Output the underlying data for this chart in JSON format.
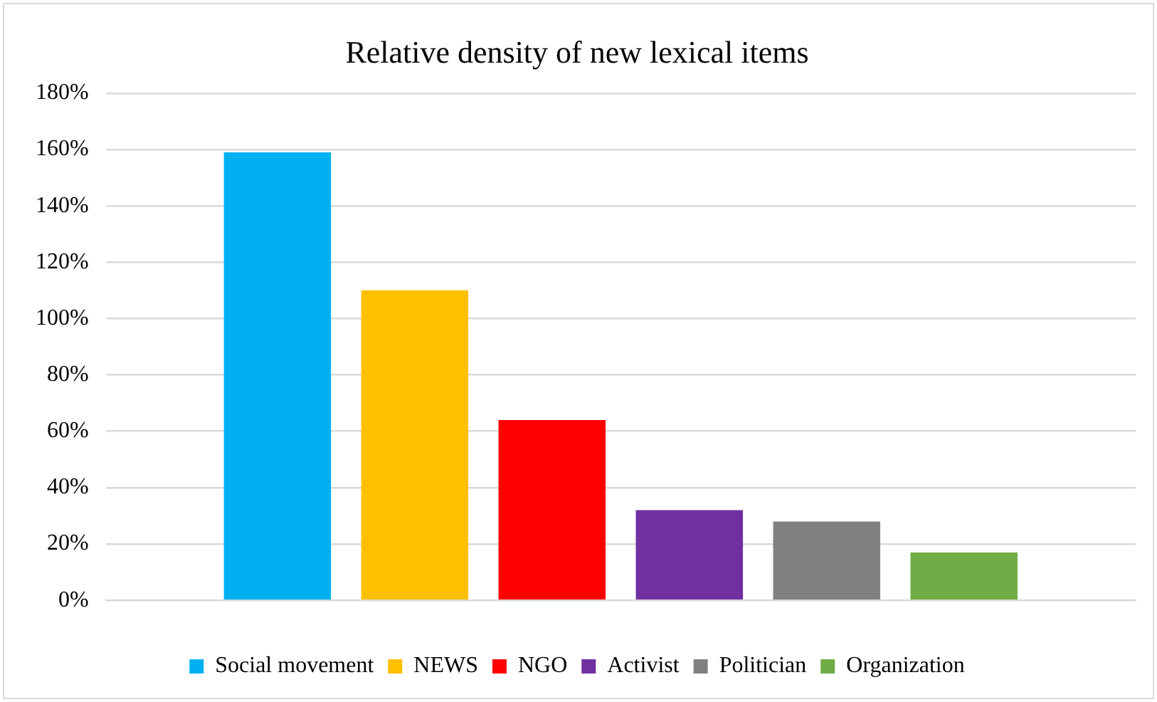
{
  "chart_data": {
    "type": "bar",
    "title": "Relative density of new lexical items",
    "categories": [
      null
    ],
    "series": [
      {
        "name": "Social movement",
        "color": "#00b0f0",
        "values": [
          159
        ]
      },
      {
        "name": "NEWS",
        "color": "#ffc000",
        "values": [
          110
        ]
      },
      {
        "name": "NGO",
        "color": "#ff0000",
        "values": [
          64
        ]
      },
      {
        "name": "Activist",
        "color": "#7030a0",
        "values": [
          32
        ]
      },
      {
        "name": "Politician",
        "color": "#808080",
        "values": [
          28
        ]
      },
      {
        "name": "Organization",
        "color": "#70ad47",
        "values": [
          17
        ]
      }
    ],
    "ylim": [
      0,
      180
    ],
    "yticks": [
      {
        "value": 0,
        "label": "0%"
      },
      {
        "value": 20,
        "label": "20%"
      },
      {
        "value": 40,
        "label": "40%"
      },
      {
        "value": 60,
        "label": "60%"
      },
      {
        "value": 80,
        "label": "80%"
      },
      {
        "value": 100,
        "label": "100%"
      },
      {
        "value": 120,
        "label": "120%"
      },
      {
        "value": 140,
        "label": "140%"
      },
      {
        "value": 160,
        "label": "160%"
      },
      {
        "value": 180,
        "label": "180%"
      }
    ],
    "grid": "y",
    "legend": "bottom"
  }
}
